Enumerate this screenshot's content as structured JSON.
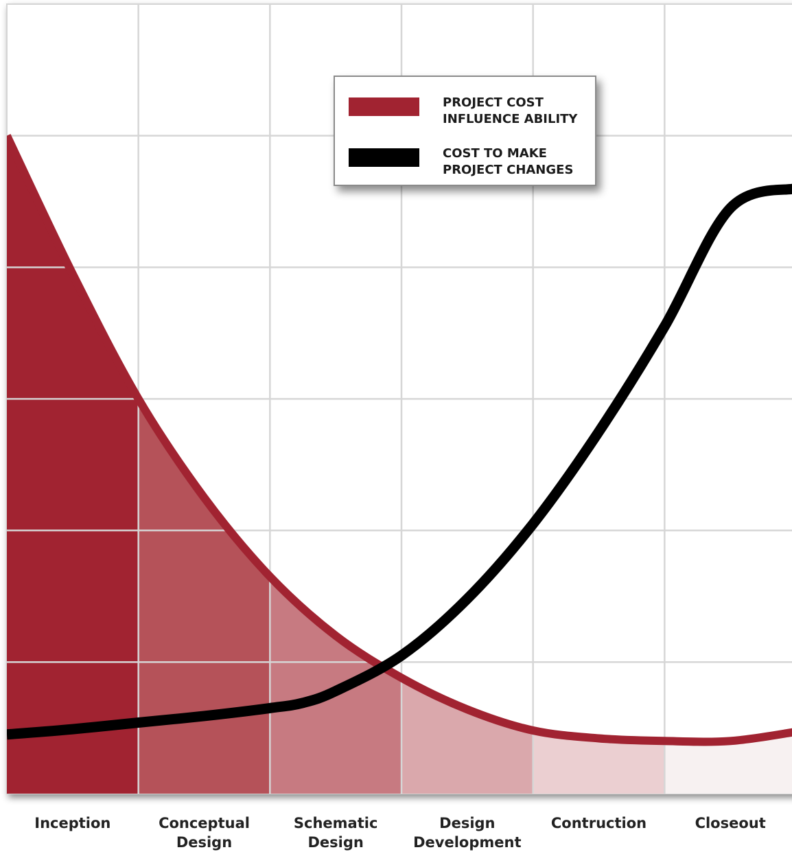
{
  "chart_data": {
    "type": "line",
    "title": "",
    "xlabel": "",
    "ylabel": "",
    "categories": [
      "Inception",
      "Conceptual\nDesign",
      "Schematic\nDesign",
      "Design\nDevelopment",
      "Contruction",
      "Closeout"
    ],
    "category_shade_colors": [
      "#a12331",
      "#b55259",
      "#c77a81",
      "#daa8ac",
      "#ebcfd1",
      "#f7f1f1"
    ],
    "grid": true,
    "legend_position": "top-center",
    "xlim": [
      0,
      6
    ],
    "ylim": [
      0,
      6
    ],
    "series": [
      {
        "name": "PROJECT COST\nINFLUENCE ABILITY",
        "color": "#a12331",
        "x": [
          0.0,
          0.5,
          1.0,
          1.5,
          2.0,
          2.5,
          3.0,
          3.5,
          4.0,
          4.5,
          5.0,
          5.5,
          6.0
        ],
        "values": [
          5.0,
          3.95,
          3.0,
          2.25,
          1.65,
          1.2,
          0.88,
          0.64,
          0.48,
          0.42,
          0.4,
          0.4,
          0.47
        ]
      },
      {
        "name": "COST TO MAKE\nPROJECT CHANGES",
        "color": "#000000",
        "x": [
          0.0,
          0.5,
          1.0,
          1.5,
          2.0,
          2.25,
          2.5,
          3.0,
          3.5,
          4.0,
          4.5,
          5.0,
          5.5,
          6.0
        ],
        "values": [
          0.45,
          0.49,
          0.54,
          0.59,
          0.65,
          0.69,
          0.78,
          1.05,
          1.48,
          2.05,
          2.75,
          3.55,
          4.45,
          4.6
        ]
      }
    ]
  }
}
